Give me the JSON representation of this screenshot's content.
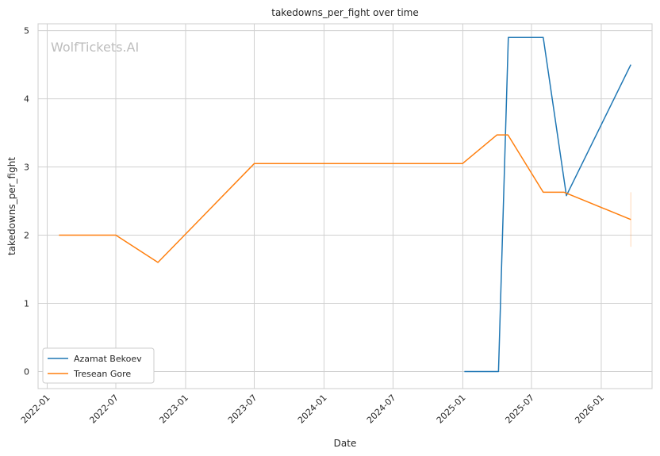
{
  "chart_data": {
    "type": "line",
    "title": "takedowns_per_fight over time",
    "xlabel": "Date",
    "ylabel": "takedowns_per_fight",
    "watermark": "WolfTickets.AI",
    "x_ticks": [
      "2022-01",
      "2022-07",
      "2023-01",
      "2023-07",
      "2024-01",
      "2024-07",
      "2025-01",
      "2025-07",
      "2026-01"
    ],
    "y_ticks": [
      "0",
      "1",
      "2",
      "3",
      "4",
      "5"
    ],
    "xlim": [
      "2021-12-08",
      "2026-05-15"
    ],
    "ylim": [
      -0.25,
      5.1
    ],
    "grid": true,
    "legend": "bottom-left",
    "series": [
      {
        "name": "Azamat Bekoev",
        "color": "#1f77b4",
        "points": [
          [
            "2025-01-05",
            0.0
          ],
          [
            "2025-04-05",
            0.0
          ],
          [
            "2025-05-01",
            4.9
          ],
          [
            "2025-08-01",
            4.9
          ],
          [
            "2025-10-01",
            2.58
          ],
          [
            "2026-03-20",
            4.5
          ]
        ]
      },
      {
        "name": "Tresean Gore",
        "color": "#ff7f0e",
        "points": [
          [
            "2022-02-01",
            2.0
          ],
          [
            "2022-07-01",
            2.0
          ],
          [
            "2022-10-20",
            1.6
          ],
          [
            "2023-07-01",
            3.05
          ],
          [
            "2024-12-31",
            3.05
          ],
          [
            "2025-04-01",
            3.47
          ],
          [
            "2025-04-30",
            3.47
          ],
          [
            "2025-08-01",
            2.63
          ],
          [
            "2025-09-25",
            2.63
          ],
          [
            "2026-03-20",
            2.23
          ]
        ],
        "error_bar": {
          "x": "2026-03-20",
          "low": 1.83,
          "high": 2.63
        }
      }
    ]
  }
}
